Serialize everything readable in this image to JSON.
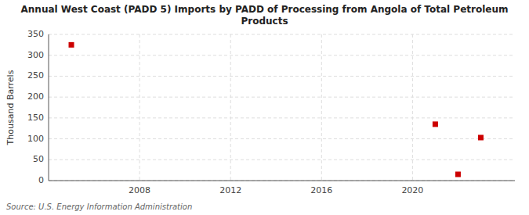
{
  "chart_data": {
    "type": "scatter",
    "title": "Annual West Coast (PADD 5) Imports by PADD of Processing from Angola of Total Petroleum\nProducts",
    "y_label": "Thousand Barrels",
    "annotations": [
      "Source: U.S. Energy Information Administration"
    ],
    "x": [
      2005,
      2021,
      2022,
      2023
    ],
    "values": [
      325,
      135,
      15,
      103
    ],
    "color": "#cc0000",
    "marker": "square",
    "xlim": [
      2004,
      2024.5
    ],
    "ylim": [
      0,
      350
    ],
    "xticks": [
      2008,
      2012,
      2016,
      2020
    ],
    "yticks": [
      0,
      50,
      100,
      150,
      200,
      250,
      300,
      350
    ],
    "grid": true
  }
}
